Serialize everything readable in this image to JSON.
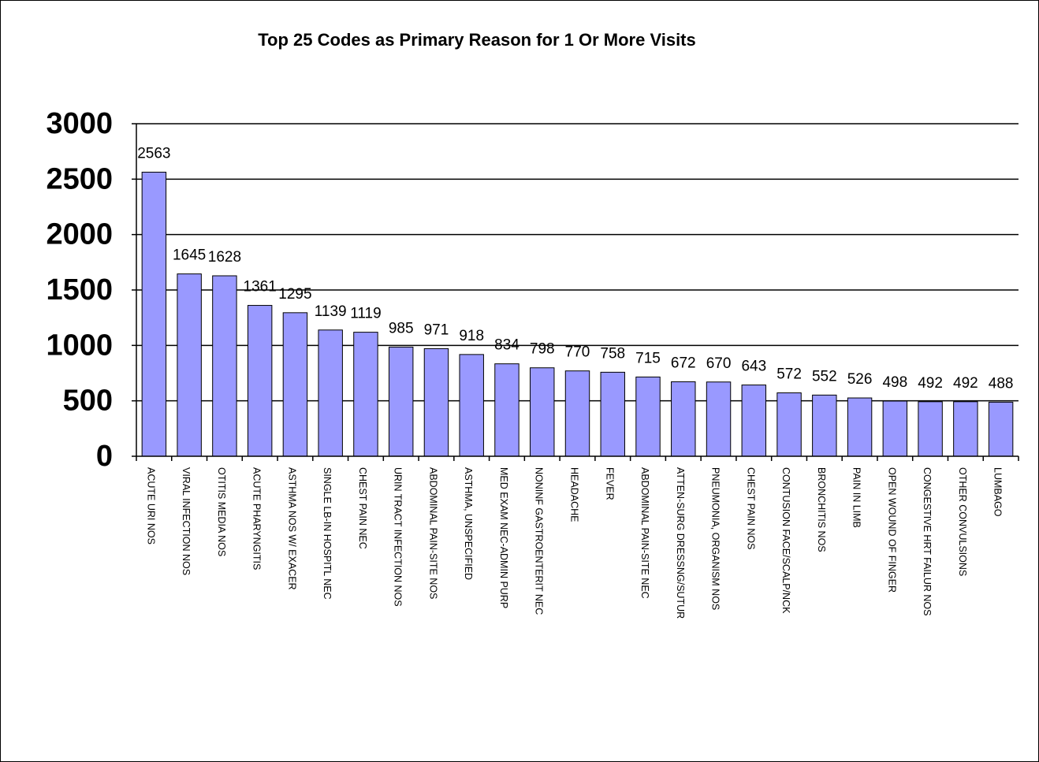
{
  "chart_data": {
    "type": "bar",
    "title": "Top 25 Codes as Primary Reason for 1 Or More Visits",
    "xlabel": "",
    "ylabel": "",
    "ylim": [
      0,
      3000
    ],
    "yticks": [
      "0",
      "500",
      "1000",
      "1500",
      "2000",
      "2500",
      "3000"
    ],
    "grid": true,
    "legend": "none",
    "bar_color": "#9999ff",
    "categories": [
      "ACUTE URI NOS",
      "VIRAL INFECTION NOS",
      "OTITIS MEDIA NOS",
      "ACUTE PHARYNGITIS",
      "ASTHMA NOS W/ EXACER",
      "SINGLE LB-IN HOSPITL NEC",
      "CHEST PAIN NEC",
      "URIN TRACT INFECTION NOS",
      "ABDOMINAL PAIN-SITE NOS",
      "ASTHMA, UNSPECIFIED",
      "MED EXAM NEC-ADMIN PURP",
      "NONINF GASTROENTERIT NEC",
      "HEADACHE",
      "FEVER",
      "ABDOMINAL PAIN-SITE NEC",
      "ATTEN-SURG DRESSNG/SUTUR",
      "PNEUMONIA, ORGANISM NOS",
      "CHEST PAIN NOS",
      "CONTUSION FACE/SCALP/NCK",
      "BRONCHITIS NOS",
      "PAIN IN LIMB",
      "OPEN WOUND OF FINGER",
      "CONGESTIVE HRT FAILUR NOS",
      "OTHER CONVULSIONS",
      "LUMBAGO"
    ],
    "values": [
      2563,
      1645,
      1628,
      1361,
      1295,
      1139,
      1119,
      985,
      971,
      918,
      834,
      798,
      770,
      758,
      715,
      672,
      670,
      643,
      572,
      552,
      526,
      498,
      492,
      492,
      488
    ],
    "data_labels": [
      "2563",
      "1645",
      "1628",
      "1361",
      "1295",
      "1139",
      "1119",
      "985",
      "971",
      "918",
      "834",
      "798",
      "770",
      "758",
      "715",
      "672",
      "670",
      "643",
      "572",
      "552",
      "526",
      "498",
      "492",
      "492",
      "488"
    ]
  }
}
